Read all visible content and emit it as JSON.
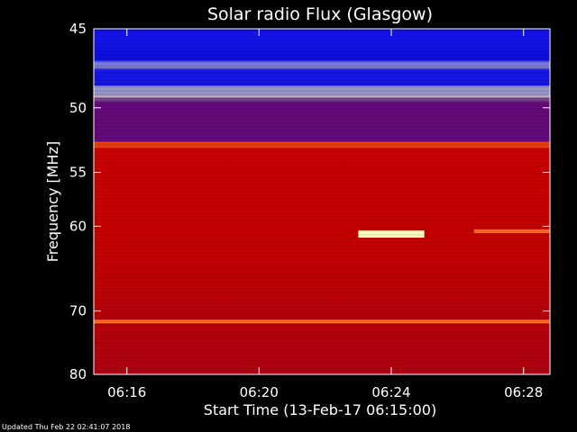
{
  "chart_data": {
    "type": "heatmap",
    "title": "Solar radio Flux (Glasgow)",
    "ylabel": "Frequency [MHz]",
    "xlabel": "Start Time (13-Feb-17 06:15:00)",
    "footer": "Updated Thu Feb 22 02:41:07 2018",
    "x_range_minutes": [
      6.25,
      6.48
    ],
    "x_ticks": [
      {
        "label": "06:16",
        "value": 6.2667
      },
      {
        "label": "06:20",
        "value": 6.3333
      },
      {
        "label": "06:24",
        "value": 6.4
      },
      {
        "label": "06:28",
        "value": 6.4667
      }
    ],
    "y_range_mhz": [
      45,
      80
    ],
    "y_ticks": [
      {
        "label": "45",
        "value": 45
      },
      {
        "label": "50",
        "value": 50
      },
      {
        "label": "55",
        "value": 55
      },
      {
        "label": "60",
        "value": 60
      },
      {
        "label": "70",
        "value": 70
      },
      {
        "label": "80",
        "value": 80
      }
    ],
    "y_scale": "reciprocal",
    "colormap": [
      "#0000a0",
      "#0000ff",
      "#c00000",
      "#e02020",
      "#ff8000",
      "#ffff80",
      "#ffffff"
    ],
    "background_level_bands": [
      {
        "from_mhz": 45,
        "to_mhz": 48.5,
        "level": "low"
      },
      {
        "from_mhz": 48.5,
        "to_mhz": 49.3,
        "level": "saturated"
      },
      {
        "from_mhz": 49.3,
        "to_mhz": 52.5,
        "level": "low"
      },
      {
        "from_mhz": 52.5,
        "to_mhz": 53.0,
        "level": "high"
      },
      {
        "from_mhz": 53.0,
        "to_mhz": 80,
        "level": "medium"
      }
    ],
    "emission_features": [
      {
        "description": "RFI line",
        "freq_mhz": 71.5,
        "level": "high"
      },
      {
        "description": "burst",
        "freq_mhz": 60.8,
        "t_start": "06:23:00",
        "t_end": "06:25:00",
        "level": "saturated"
      },
      {
        "description": "drifting band",
        "freq_mhz": 60.5,
        "t_start": "06:26:30",
        "t_end": "06:30:00",
        "level": "high"
      }
    ]
  }
}
